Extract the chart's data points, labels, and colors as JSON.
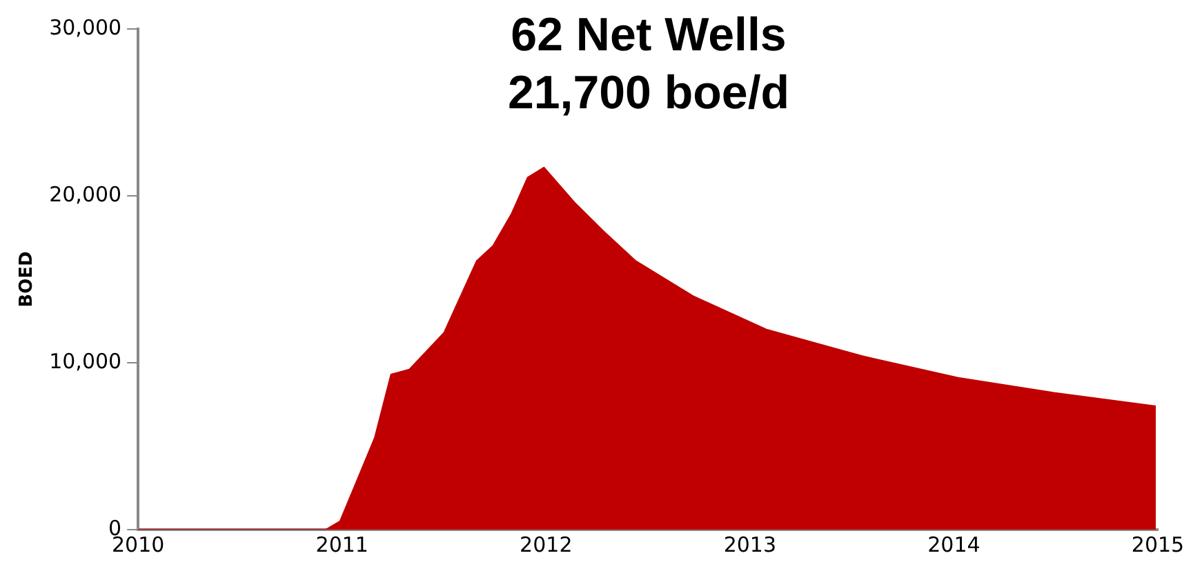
{
  "chart_data": {
    "type": "area",
    "title": "62 Net Wells\n21,700 boe/d",
    "ylabel": "BOED",
    "x": [
      2010,
      2010.92,
      2010.99,
      2011.16,
      2011.24,
      2011.33,
      2011.5,
      2011.66,
      2011.74,
      2011.83,
      2011.91,
      2011.99,
      2012.14,
      2012.28,
      2012.44,
      2012.72,
      2013.08,
      2013.55,
      2014.02,
      2014.49,
      2014.99
    ],
    "series": [
      {
        "color": "#c00000",
        "values": [
          0,
          0,
          500,
          5500,
          9300,
          9600,
          11800,
          16100,
          17000,
          18900,
          21100,
          21700,
          19600,
          17900,
          16100,
          14000,
          12000,
          10400,
          9100,
          8200,
          7400
        ]
      }
    ],
    "xlim": [
      2010,
      2015
    ],
    "xticks": [
      2010,
      2011,
      2012,
      2013,
      2014,
      2015
    ],
    "ylim": [
      0,
      30000
    ],
    "yticks": [
      0,
      {
        "value": 10000,
        "label": "10,000"
      },
      {
        "value": 20000,
        "label": "20,000"
      },
      {
        "value": 30000,
        "label": "30,000"
      }
    ],
    "grid": false,
    "legend": false,
    "marker": "none"
  }
}
